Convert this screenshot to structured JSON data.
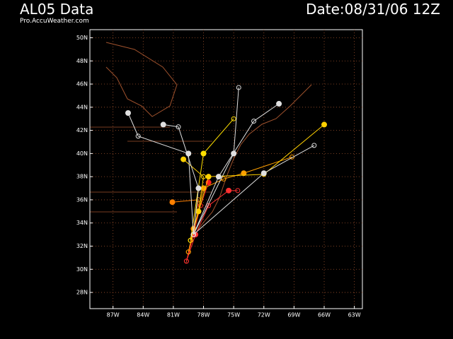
{
  "header": {
    "title": "AL05 Data",
    "source": "Pro.AccuWeather.com",
    "date": "Date:08/31/06 12Z"
  },
  "chart_data": {
    "type": "line",
    "xlim": [
      -89.3,
      -62.2
    ],
    "ylim": [
      26.6,
      50.7
    ],
    "grid": true,
    "xticks": [
      {
        "value": -87,
        "label": "87W"
      },
      {
        "value": -84,
        "label": "84W"
      },
      {
        "value": -81,
        "label": "81W"
      },
      {
        "value": -78,
        "label": "78W"
      },
      {
        "value": -75,
        "label": "75W"
      },
      {
        "value": -72,
        "label": "72W"
      },
      {
        "value": -69,
        "label": "69W"
      },
      {
        "value": -66,
        "label": "66W"
      },
      {
        "value": -63,
        "label": "63W"
      }
    ],
    "yticks": [
      {
        "value": 50,
        "label": "50N"
      },
      {
        "value": 48,
        "label": "48N"
      },
      {
        "value": 46,
        "label": "46N"
      },
      {
        "value": 44,
        "label": "44N"
      },
      {
        "value": 42,
        "label": "42N"
      },
      {
        "value": 40,
        "label": "40N"
      },
      {
        "value": 38,
        "label": "38N"
      },
      {
        "value": 36,
        "label": "36N"
      },
      {
        "value": 34,
        "label": "34N"
      },
      {
        "value": 32,
        "label": "32N"
      },
      {
        "value": 30,
        "label": "30N"
      },
      {
        "value": 28,
        "label": "28N"
      }
    ],
    "series": [
      {
        "color": "#ff2020",
        "x": [
          -79.7,
          -79,
          -78.3,
          -77.5
        ],
        "values": [
          30.7,
          33,
          35.5,
          37.5
        ]
      },
      {
        "color": "#ff3030",
        "x": [
          -79.7,
          -78.8,
          -77.5,
          -75.5,
          -74.6
        ],
        "values": [
          30.7,
          33,
          35.5,
          36.8,
          36.8
        ]
      },
      {
        "color": "#ff8000",
        "x": [
          -79.5,
          -79,
          -78.5,
          -81.1
        ],
        "values": [
          31.5,
          33.5,
          36,
          35.8
        ]
      },
      {
        "color": "#ffa000",
        "x": [
          -79.5,
          -78,
          -76,
          -74,
          -69.2
        ],
        "values": [
          31.5,
          37,
          37.8,
          38.3,
          39.7
        ]
      },
      {
        "color": "#ffd000",
        "x": [
          -79.3,
          -78.5,
          -78,
          -80
        ],
        "values": [
          32.5,
          35,
          38,
          39.5
        ]
      },
      {
        "color": "#ffd000",
        "x": [
          -79.3,
          -77.5,
          -72,
          -66
        ],
        "values": [
          32.5,
          38,
          38.2,
          42.5
        ]
      },
      {
        "color": "#ffe000",
        "x": [
          -79.3,
          -78,
          -75
        ],
        "values": [
          32.5,
          40,
          43
        ]
      },
      {
        "color": "#e0e0e0",
        "x": [
          -79,
          -78.5,
          -80.5,
          -82
        ],
        "values": [
          33,
          37,
          42.3,
          42.5
        ]
      },
      {
        "color": "#e0e0e0",
        "x": [
          -79,
          -79.5,
          -84.5,
          -85.5
        ],
        "values": [
          33,
          40,
          41.5,
          43.5
        ]
      },
      {
        "color": "#e0e0e0",
        "x": [
          -79,
          -76.5,
          -73,
          -70.5
        ],
        "values": [
          33,
          38,
          42.8,
          44.3
        ]
      },
      {
        "color": "#e0e0e0",
        "x": [
          -79,
          -75,
          -74.5
        ],
        "values": [
          33,
          40,
          45.7
        ]
      },
      {
        "color": "#e0e0e0",
        "x": [
          -79,
          -72,
          -67
        ],
        "values": [
          33,
          38.3,
          40.7
        ]
      }
    ]
  }
}
